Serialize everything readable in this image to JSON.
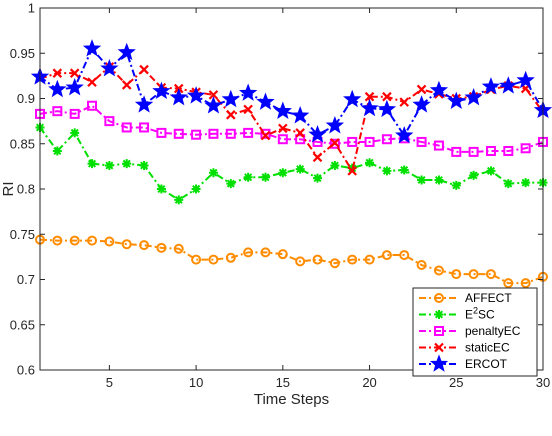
{
  "chart_data": {
    "type": "line",
    "xlabel": "Time Steps",
    "ylabel": "RI",
    "xlim": [
      1,
      30
    ],
    "ylim": [
      0.6,
      1
    ],
    "xticks": [
      5,
      10,
      15,
      20,
      25,
      30
    ],
    "yticks": [
      0.6,
      0.65,
      0.7,
      0.75,
      0.8,
      0.85,
      0.9,
      0.95,
      1
    ],
    "ytick_labels": [
      "0.6",
      "0.65",
      "0.7",
      "0.75",
      "0.8",
      "0.85",
      "0.9",
      "0.95",
      "1"
    ],
    "grid": false,
    "legend_position": "bottom-right",
    "x": [
      1,
      2,
      3,
      4,
      5,
      6,
      7,
      8,
      9,
      10,
      11,
      12,
      13,
      14,
      15,
      16,
      17,
      18,
      19,
      20,
      21,
      22,
      23,
      24,
      25,
      26,
      27,
      28,
      29,
      30
    ],
    "series": [
      {
        "name": "AFFECT",
        "legend_base": "AFFECT",
        "legend_sup": "",
        "legend_suffix": "",
        "color": "#ff8c00",
        "marker": "circle",
        "values": [
          0.744,
          0.743,
          0.743,
          0.743,
          0.742,
          0.739,
          0.738,
          0.735,
          0.734,
          0.722,
          0.722,
          0.724,
          0.73,
          0.73,
          0.728,
          0.72,
          0.722,
          0.718,
          0.722,
          0.722,
          0.727,
          0.727,
          0.716,
          0.71,
          0.706,
          0.706,
          0.706,
          0.696,
          0.696,
          0.703
        ]
      },
      {
        "name": "E2SC",
        "legend_base": "E",
        "legend_sup": "2",
        "legend_suffix": "SC",
        "color": "#00e000",
        "marker": "asterisk",
        "values": [
          0.868,
          0.842,
          0.862,
          0.828,
          0.826,
          0.828,
          0.826,
          0.8,
          0.788,
          0.8,
          0.818,
          0.806,
          0.813,
          0.813,
          0.818,
          0.822,
          0.812,
          0.826,
          0.823,
          0.829,
          0.82,
          0.821,
          0.81,
          0.81,
          0.804,
          0.815,
          0.82,
          0.806,
          0.807,
          0.807
        ]
      },
      {
        "name": "penaltyEC",
        "legend_base": "penaltyEC",
        "legend_sup": "",
        "legend_suffix": "",
        "color": "#ff00ff",
        "marker": "square",
        "values": [
          0.883,
          0.886,
          0.883,
          0.892,
          0.875,
          0.868,
          0.868,
          0.862,
          0.861,
          0.86,
          0.861,
          0.861,
          0.862,
          0.861,
          0.855,
          0.855,
          0.852,
          0.85,
          0.852,
          0.852,
          0.855,
          0.856,
          0.852,
          0.848,
          0.841,
          0.841,
          0.842,
          0.842,
          0.845,
          0.852
        ]
      },
      {
        "name": "staticEC",
        "legend_base": "staticEC",
        "legend_sup": "",
        "legend_suffix": "",
        "color": "#ff0000",
        "marker": "x",
        "values": [
          0.922,
          0.928,
          0.928,
          0.918,
          0.935,
          0.915,
          0.932,
          0.912,
          0.911,
          0.907,
          0.904,
          0.882,
          0.888,
          0.859,
          0.867,
          0.862,
          0.835,
          0.851,
          0.82,
          0.902,
          0.902,
          0.896,
          0.91,
          0.905,
          0.9,
          0.902,
          0.91,
          0.914,
          0.911,
          0.885
        ]
      },
      {
        "name": "ERCOT",
        "legend_base": "ERCOT",
        "legend_sup": "",
        "legend_suffix": "",
        "color": "#0000ff",
        "marker": "star",
        "values": [
          0.924,
          0.91,
          0.912,
          0.955,
          0.933,
          0.951,
          0.893,
          0.908,
          0.901,
          0.903,
          0.892,
          0.899,
          0.906,
          0.896,
          0.886,
          0.881,
          0.86,
          0.87,
          0.899,
          0.889,
          0.888,
          0.859,
          0.893,
          0.909,
          0.897,
          0.901,
          0.913,
          0.914,
          0.92,
          0.887
        ]
      }
    ]
  }
}
